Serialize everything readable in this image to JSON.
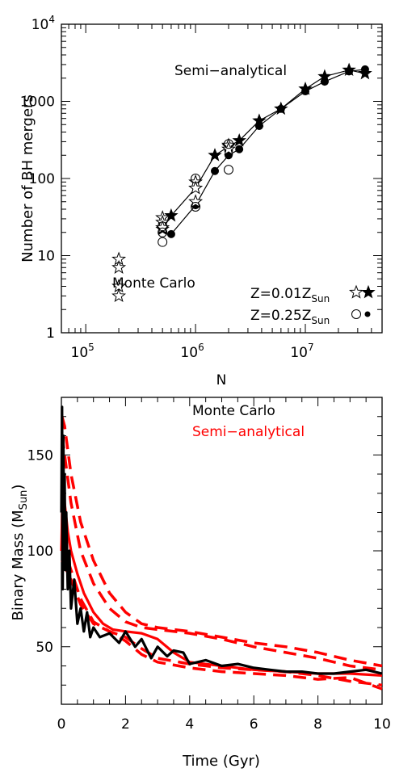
{
  "chart_data": [
    {
      "type": "scatter",
      "ylabel": "Number of BH mergers",
      "xlabel": "N",
      "x_scale": "log",
      "y_scale": "log",
      "xlim": [
        60000,
        50000000
      ],
      "ylim": [
        1,
        10000
      ],
      "x_ticks": [
        {
          "v": 100000,
          "m": "10",
          "e": "5"
        },
        {
          "v": 1000000,
          "m": "10",
          "e": "6"
        },
        {
          "v": 10000000,
          "m": "10",
          "e": "7"
        }
      ],
      "y_ticks": [
        {
          "v": 1,
          "label": "1"
        },
        {
          "v": 10,
          "label": "10"
        },
        {
          "v": 100,
          "label": "100"
        },
        {
          "v": 1000,
          "label": "1000"
        },
        {
          "v": 10000,
          "m": "10",
          "e": "4"
        }
      ],
      "annotations": {
        "semi": "Semi−analytical",
        "mc": "Monte Carlo",
        "leg1_main": "Z=0.01Z",
        "leg1_sub": "Sun",
        "leg2_main": "Z=0.25Z",
        "leg2_sub": "Sun"
      },
      "series": [
        {
          "name": "Z=0.01Z_Sun semi-analytical",
          "marker": "filled-star",
          "line": true,
          "x": [
            500000,
            600000,
            1000000,
            1500000,
            2000000,
            2500000,
            3800000,
            6000000,
            10000000,
            15000000,
            25000000,
            35000000
          ],
          "y": [
            22,
            33,
            75,
            200,
            260,
            310,
            560,
            800,
            1450,
            2100,
            2550,
            2300
          ]
        },
        {
          "name": "Z=0.25Z_Sun semi-analytical",
          "marker": "filled-circle",
          "line": true,
          "x": [
            600000,
            1000000,
            1500000,
            2000000,
            2500000,
            3800000,
            6000000,
            10000000,
            15000000,
            25000000,
            35000000
          ],
          "y": [
            19,
            45,
            125,
            200,
            240,
            480,
            800,
            1350,
            1800,
            2450,
            2600
          ]
        },
        {
          "name": "Z=0.01Z_Sun Monte Carlo",
          "marker": "open-star",
          "line": false,
          "x": [
            200000,
            200000,
            200000,
            200000,
            500000,
            500000,
            500000,
            1000000,
            1000000,
            1000000,
            2000000,
            2000000
          ],
          "y": [
            9,
            7,
            4,
            3,
            31,
            27,
            23,
            90,
            75,
            50,
            270,
            240
          ]
        },
        {
          "name": "Z=0.25Z_Sun Monte Carlo",
          "marker": "open-circle",
          "line": false,
          "x": [
            500000,
            500000,
            500000,
            1000000,
            1000000,
            2000000,
            2000000
          ],
          "y": [
            24,
            20,
            15,
            100,
            43,
            280,
            130
          ]
        }
      ]
    },
    {
      "type": "line",
      "xlabel": "Time (Gyr)",
      "ylabel_main": "Binary Mass (M",
      "ylabel_sub": "Sun",
      "ylabel_end": ")",
      "xlim": [
        0,
        10
      ],
      "ylim": [
        20,
        180
      ],
      "x_ticks": [
        0,
        2,
        4,
        6,
        8,
        10
      ],
      "y_ticks": [
        50,
        100,
        150
      ],
      "legend": [
        {
          "label": "Monte Carlo",
          "color": "#000000"
        },
        {
          "label": "Semi−analytical",
          "color": "#ff0000"
        }
      ],
      "series": [
        {
          "name": "Monte Carlo",
          "color": "#000000",
          "style": "solid",
          "x": [
            0,
            0.02,
            0.04,
            0.06,
            0.08,
            0.1,
            0.12,
            0.15,
            0.2,
            0.25,
            0.3,
            0.4,
            0.5,
            0.6,
            0.7,
            0.8,
            0.9,
            1.0,
            1.2,
            1.5,
            1.8,
            2.0,
            2.3,
            2.5,
            2.8,
            3.0,
            3.3,
            3.5,
            3.8,
            4.0,
            4.5,
            5.0,
            5.5,
            6.0,
            6.5,
            7.0,
            7.5,
            8.0,
            8.5,
            9.0,
            9.5,
            10.0
          ],
          "y": [
            120,
            175,
            80,
            160,
            100,
            140,
            90,
            120,
            80,
            100,
            70,
            85,
            62,
            70,
            58,
            68,
            55,
            60,
            55,
            57,
            52,
            58,
            50,
            54,
            44,
            50,
            45,
            48,
            47,
            41,
            43,
            40,
            41,
            39,
            38,
            37,
            37,
            36,
            36,
            37,
            38,
            36
          ]
        },
        {
          "name": "Semi-analytical",
          "color": "#ff0000",
          "style": "solid",
          "x": [
            0,
            0.05,
            0.1,
            0.2,
            0.3,
            0.5,
            0.7,
            1.0,
            1.3,
            1.6,
            2.0,
            2.5,
            3.0,
            3.5,
            4.0,
            5.0,
            6.0,
            7.0,
            8.0,
            9.0,
            10.0
          ],
          "y": [
            100,
            140,
            125,
            110,
            100,
            88,
            78,
            68,
            62,
            59,
            58,
            57,
            54,
            47,
            42,
            40,
            38,
            37,
            36,
            36,
            35
          ]
        },
        {
          "name": "Semi-analytical",
          "color": "#ff0000",
          "style": "dashed",
          "x": [
            0.02,
            0.1,
            0.3,
            0.6,
            1.0,
            1.5,
            2.0,
            2.5,
            3.0,
            4.0,
            5.0,
            6.0,
            7.0,
            8.0,
            9.0,
            10.0
          ],
          "y": [
            170,
            165,
            140,
            115,
            95,
            78,
            68,
            62,
            60,
            58,
            55,
            52,
            50,
            47,
            43,
            40
          ]
        },
        {
          "name": "Semi-analytical",
          "color": "#ff0000",
          "style": "dashed",
          "x": [
            0.02,
            0.1,
            0.3,
            0.6,
            1.0,
            1.5,
            2.0,
            2.5,
            3.0,
            4.0,
            5.0,
            6.0,
            7.0,
            8.0,
            9.0,
            10.0
          ],
          "y": [
            160,
            150,
            125,
            100,
            83,
            70,
            63,
            60,
            59,
            57,
            54,
            50,
            47,
            44,
            40,
            38
          ]
        },
        {
          "name": "Semi-analytical",
          "color": "#ff0000",
          "style": "dashed",
          "x": [
            0.02,
            0.1,
            0.3,
            0.6,
            1.0,
            1.5,
            2.0,
            2.5,
            3.0,
            4.0,
            5.0,
            6.0,
            7.0,
            8.0,
            9.0,
            10.0
          ],
          "y": [
            105,
            100,
            90,
            75,
            63,
            58,
            55,
            49,
            44,
            41,
            39,
            38,
            37,
            35,
            32,
            30
          ]
        },
        {
          "name": "Semi-analytical",
          "color": "#ff0000",
          "style": "dashed",
          "x": [
            0.02,
            0.1,
            0.3,
            0.6,
            1.0,
            1.5,
            2.0,
            2.5,
            3.0,
            4.0,
            5.0,
            6.0,
            7.0,
            8.0,
            9.0,
            10.0
          ],
          "y": [
            95,
            92,
            85,
            72,
            62,
            58,
            53,
            46,
            42,
            39,
            37,
            36,
            35,
            33,
            34,
            28
          ]
        }
      ]
    }
  ]
}
